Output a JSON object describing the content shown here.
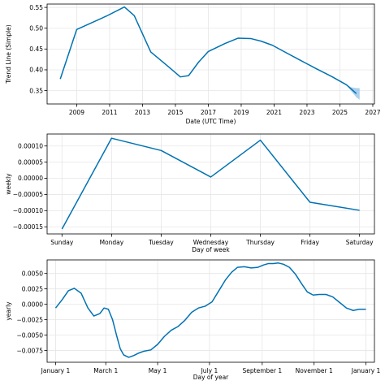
{
  "colors": {
    "line": "#0072B2",
    "band": "#9ec9ec",
    "grid": "#e6e6e6"
  },
  "chart_data": [
    {
      "type": "line",
      "id": "trend",
      "xlabel": "Date (UTC Time)",
      "ylabel": "Trend Line (Simple)",
      "xlim": [
        2007.2,
        2027.1
      ],
      "ylim": [
        0.318,
        0.558
      ],
      "xticks": [
        2009,
        2011,
        2013,
        2015,
        2017,
        2019,
        2021,
        2023,
        2025,
        2027
      ],
      "xtick_labels": [
        "2009",
        "2011",
        "2013",
        "2015",
        "2017",
        "2019",
        "2021",
        "2023",
        "2025",
        "2027"
      ],
      "yticks": [
        0.35,
        0.4,
        0.45,
        0.5,
        0.55
      ],
      "ytick_labels": [
        "0.35",
        "0.40",
        "0.45",
        "0.50",
        "0.55"
      ],
      "grid": true,
      "series": [
        {
          "x": [
            2008.0,
            2009.0,
            2010.8,
            2011.9,
            2012.5,
            2013.5,
            2014.5,
            2015.3,
            2015.8,
            2016.4,
            2017.0,
            2018.0,
            2018.8,
            2019.6,
            2020.2,
            2020.9,
            2021.5,
            2022.5,
            2023.5,
            2024.5,
            2025.4,
            2026.0
          ],
          "y": [
            0.378,
            0.497,
            0.529,
            0.551,
            0.53,
            0.443,
            0.41,
            0.383,
            0.386,
            0.418,
            0.444,
            0.463,
            0.476,
            0.475,
            0.469,
            0.459,
            0.446,
            0.425,
            0.404,
            0.384,
            0.364,
            0.343
          ]
        }
      ],
      "uncertainty_band": {
        "x": [
          2025.4,
          2025.7,
          2026.0,
          2026.2
        ],
        "upper": [
          0.364,
          0.358,
          0.356,
          0.356
        ],
        "lower": [
          0.364,
          0.348,
          0.334,
          0.328
        ]
      }
    },
    {
      "type": "line",
      "id": "weekly",
      "xlabel": "Day of week",
      "ylabel": "weekly",
      "categories": [
        "Sunday",
        "Monday",
        "Tuesday",
        "Wednesday",
        "Thursday",
        "Friday",
        "Saturday"
      ],
      "xlim": [
        -0.3,
        6.3
      ],
      "ylim": [
        -0.000172,
        0.000137
      ],
      "yticks": [
        -0.00015,
        -0.0001,
        -5e-05,
        0.0,
        5e-05,
        0.0001
      ],
      "ytick_labels": [
        "−0.00015",
        "−0.00010",
        "−0.00005",
        "0.00000",
        "0.00005",
        "0.00010"
      ],
      "grid": true,
      "series": [
        {
          "values": [
            -0.000157,
            0.000124,
            8.6e-05,
            4e-06,
            0.000118,
            -7.4e-05,
            -9.9e-05
          ]
        }
      ]
    },
    {
      "type": "line",
      "id": "yearly",
      "xlabel": "Day of year",
      "ylabel": "yearly",
      "xlim": [
        -10,
        375
      ],
      "ylim": [
        -0.0094,
        0.0072
      ],
      "xticks": [
        0,
        59,
        120,
        181,
        243,
        304,
        365
      ],
      "xtick_labels": [
        "January 1",
        "March 1",
        "May 1",
        "July 1",
        "September 1",
        "November 1",
        "January 1"
      ],
      "yticks": [
        -0.0075,
        -0.005,
        -0.0025,
        0.0,
        0.0025,
        0.005
      ],
      "ytick_labels": [
        "−0.0075",
        "−0.0050",
        "−0.0025",
        "0.0000",
        "0.0025",
        "0.0050"
      ],
      "grid": true,
      "series": [
        {
          "x": [
            0,
            8,
            15,
            22,
            30,
            38,
            45,
            52,
            57,
            62,
            67,
            72,
            76,
            80,
            86,
            92,
            98,
            104,
            112,
            120,
            128,
            136,
            144,
            152,
            160,
            168,
            176,
            184,
            192,
            200,
            207,
            214,
            222,
            230,
            238,
            245,
            250,
            256,
            262,
            268,
            275,
            282,
            289,
            296,
            303,
            310,
            318,
            326,
            334,
            342,
            350,
            357,
            365
          ],
          "y": [
            -0.0006,
            0.0008,
            0.0022,
            0.0026,
            0.0018,
            -0.0006,
            -0.0019,
            -0.0015,
            -0.0006,
            -0.0008,
            -0.0025,
            -0.0052,
            -0.0072,
            -0.0082,
            -0.0086,
            -0.0083,
            -0.0079,
            -0.0076,
            -0.0074,
            -0.0065,
            -0.0052,
            -0.0042,
            -0.0036,
            -0.0026,
            -0.0013,
            -0.0006,
            -0.0003,
            0.0004,
            0.0022,
            0.004,
            0.0052,
            0.006,
            0.0061,
            0.0059,
            0.006,
            0.0064,
            0.0066,
            0.0066,
            0.0067,
            0.0065,
            0.006,
            0.0049,
            0.0034,
            0.002,
            0.0015,
            0.0016,
            0.0016,
            0.0012,
            0.0003,
            -0.0006,
            -0.001,
            -0.0008,
            -0.0008
          ]
        }
      ]
    }
  ]
}
